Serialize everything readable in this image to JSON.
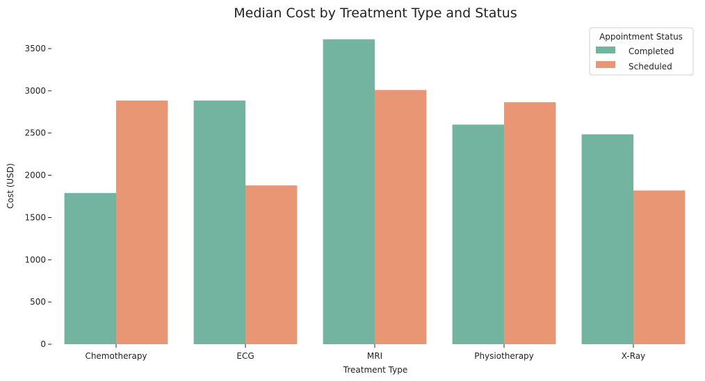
{
  "chart_data": {
    "type": "bar",
    "title": "Median Cost by Treatment Type and Status",
    "xlabel": "Treatment Type",
    "ylabel": "Cost (USD)",
    "categories": [
      "Chemotherapy",
      "ECG",
      "MRI",
      "Physiotherapy",
      "X-Ray"
    ],
    "series": [
      {
        "name": "Completed",
        "color": "#73b4a0",
        "values": [
          1790,
          2885,
          3610,
          2600,
          2485
        ]
      },
      {
        "name": "Scheduled",
        "color": "#e89674",
        "values": [
          2885,
          1880,
          3010,
          2865,
          1820
        ]
      }
    ],
    "ylim": [
      0,
      3750
    ],
    "yticks": [
      0,
      500,
      1000,
      1500,
      2000,
      2500,
      3000,
      3500
    ],
    "ytick_labels": [
      "0",
      "500",
      "1000",
      "1500",
      "2000",
      "2500",
      "3000",
      "3500"
    ],
    "grid": false,
    "legend": {
      "title": "Appointment Status",
      "placement": "top-right"
    }
  }
}
